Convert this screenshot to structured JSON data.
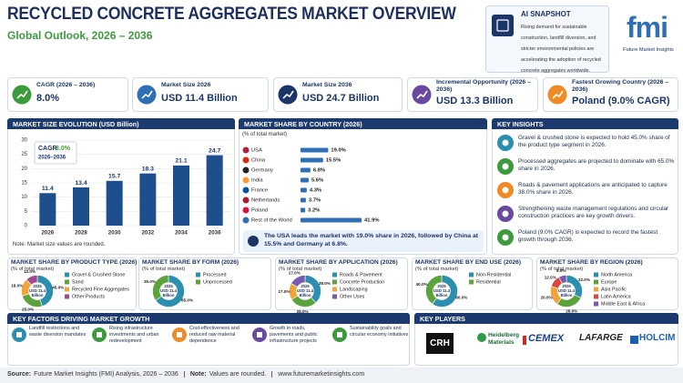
{
  "header": {
    "title": "RECYCLED CONCRETE AGGREGATES MARKET OVERVIEW",
    "subtitle": "Global Outlook, 2026 – 2036"
  },
  "ai_snapshot": {
    "title": "AI SNAPSHOT",
    "text": "Rising demand for sustainable construction, landfill diversion, and stricter environmental policies are accelerating the adoption of recycled concrete aggregates worldwide."
  },
  "logo": {
    "mark": "fmi",
    "name": "Future Market Insights"
  },
  "kpis": [
    {
      "label": "CAGR (2026 – 2036)",
      "value": "8.0%"
    },
    {
      "label": "Market Size 2026",
      "value": "USD 11.4 Billion"
    },
    {
      "label": "Market Size 2036",
      "value": "USD 24.7 Billion"
    },
    {
      "label": "Incremental Opportunity (2026 – 2036)",
      "value": "USD 13.3 Billion"
    },
    {
      "label": "Fastest Growing Country (2026 – 2036)",
      "value": "Poland (9.0% CAGR)"
    }
  ],
  "chart_data": [
    {
      "type": "bar",
      "title": "MARKET SIZE EVOLUTION (USD Billion)",
      "categories": [
        "2026",
        "2028",
        "2030",
        "2032",
        "2034",
        "2036"
      ],
      "values": [
        11.4,
        13.4,
        15.7,
        18.3,
        21.1,
        24.7
      ],
      "color": "#1f4e8c",
      "ylim": [
        0,
        30
      ],
      "yticks": [
        0,
        5,
        10,
        15,
        20,
        25,
        30
      ],
      "grid": true,
      "annotation": {
        "label": "CAGR",
        "value": "8.0%",
        "period": "2026–2036"
      },
      "note": "Note: Market size values are rounded."
    },
    {
      "type": "hbar",
      "title": "MARKET SHARE BY COUNTRY (2026)",
      "subtitle": "(% of total market)",
      "categories": [
        "USA",
        "China",
        "Germany",
        "India",
        "France",
        "Netherlands",
        "Poland",
        "Rest of the World"
      ],
      "values": [
        19.0,
        15.5,
        6.8,
        5.6,
        4.3,
        3.7,
        3.2,
        41.9
      ],
      "value_labels": [
        "19.0%",
        "15.5%",
        "6.8%",
        "5.6%",
        "4.3%",
        "3.7%",
        "3.2%",
        "41.9%"
      ],
      "color": "#2f6fb5",
      "caption": "The USA leads the market with 19.0% share in 2026, followed by China at 15.5% and Germany at 6.8%."
    },
    {
      "type": "donut",
      "title": "MARKET SHARE BY PRODUCT TYPE (2026)",
      "subtitle": "(% of total market)",
      "center": {
        "year": "2026",
        "value": "USD 11.4",
        "unit": "Billion"
      },
      "categories": [
        "Gravel & Crushed Stone",
        "Sand",
        "Recycled Fine Aggregates",
        "Other Products"
      ],
      "values": [
        45.0,
        25.0,
        18.0,
        12.0
      ],
      "value_labels": [
        "45.0%",
        "25.0%",
        "18.0%",
        "12.0%"
      ],
      "colors": [
        "#2d8fb0",
        "#5ba33b",
        "#f2a33a",
        "#a34a8e"
      ]
    },
    {
      "type": "donut",
      "title": "MARKET SHARE BY FORM (2026)",
      "subtitle": "(% of total market)",
      "center": {
        "year": "2026",
        "value": "USD 11.4",
        "unit": "Billion"
      },
      "categories": [
        "Processed",
        "Unprocessed"
      ],
      "values": [
        65.0,
        35.0
      ],
      "value_labels": [
        "65.0%",
        "35.0%"
      ],
      "colors": [
        "#2d8fb0",
        "#5ba33b"
      ]
    },
    {
      "type": "donut",
      "title": "MARKET SHARE BY APPLICATION (2026)",
      "subtitle": "(% of total market)",
      "center": {
        "year": "2026",
        "value": "USD 11.4",
        "unit": "Billion"
      },
      "categories": [
        "Roads & Pavement",
        "Concrete Production",
        "Landscaping",
        "Other Uses"
      ],
      "values": [
        38.0,
        28.0,
        17.0,
        17.0
      ],
      "value_labels": [
        "38.0%",
        "28.0%",
        "17.0%",
        "17.0%"
      ],
      "colors": [
        "#2d8fb0",
        "#5ba33b",
        "#f2a33a",
        "#7a5ab0"
      ]
    },
    {
      "type": "donut",
      "title": "MARKET SHARE BY END USE (2026)",
      "subtitle": "(% of total market)",
      "center": {
        "year": "2026",
        "value": "USD 11.4",
        "unit": "Billion"
      },
      "categories": [
        "Non-Residential",
        "Residential"
      ],
      "values": [
        60.0,
        40.0
      ],
      "value_labels": [
        "60.0%",
        "40.0%"
      ],
      "colors": [
        "#2d8fb0",
        "#5ba33b"
      ]
    },
    {
      "type": "donut",
      "title": "MARKET SHARE BY REGION (2026)",
      "subtitle": "(% of total market)",
      "center": {
        "year": "2026",
        "value": "USD 11.4",
        "unit": "Billion"
      },
      "categories": [
        "North America",
        "Europe",
        "Asia Pacific",
        "Latin America",
        "Middle East & Africa"
      ],
      "values": [
        32.0,
        28.0,
        20.0,
        12.0,
        8.0
      ],
      "value_labels": [
        "32.0%",
        "28.0%",
        "20.0%",
        "12.0%",
        "8.0%"
      ],
      "colors": [
        "#2d8fb0",
        "#5ba33b",
        "#f2a33a",
        "#d9473f",
        "#7a5ab0"
      ]
    }
  ],
  "key_insights": {
    "title": "KEY INSIGHTS",
    "items": [
      "Gravel & crushed stone is expected to hold 45.0% share of the product type segment in 2026.",
      "Processed aggregates are projected to dominate with 65.0% share in 2026.",
      "Roads & pavement applications are anticipated to capture 38.0% share in 2026.",
      "Strengthening waste management regulations and circular construction practices are key growth drivers.",
      "Poland (9.0% CAGR) is expected to record the fastest growth through 2036."
    ]
  },
  "key_factors": {
    "title": "KEY FACTORS DRIVING MARKET GROWTH",
    "items": [
      "Landfill restrictions and waste diversion mandates",
      "Rising infrastructure investments and urban redevelopment",
      "Cost-effectiveness and reduced raw material dependence",
      "Growth in roads, pavements and public infrastructure projects",
      "Sustainability goals and circular economy initiatives"
    ]
  },
  "key_players": {
    "title": "KEY PLAYERS",
    "items": [
      "CRH",
      "Heidelberg Materials",
      "CEMEX",
      "LAFARGE",
      "HOLCIM"
    ]
  },
  "footer": {
    "source_label": "Source:",
    "source": "Future Market Insights (FMI) Analysis, 2026 – 2036",
    "note_label": "Note:",
    "note": "Values are rounded.",
    "url": "www.futuremarketinsights.com"
  }
}
